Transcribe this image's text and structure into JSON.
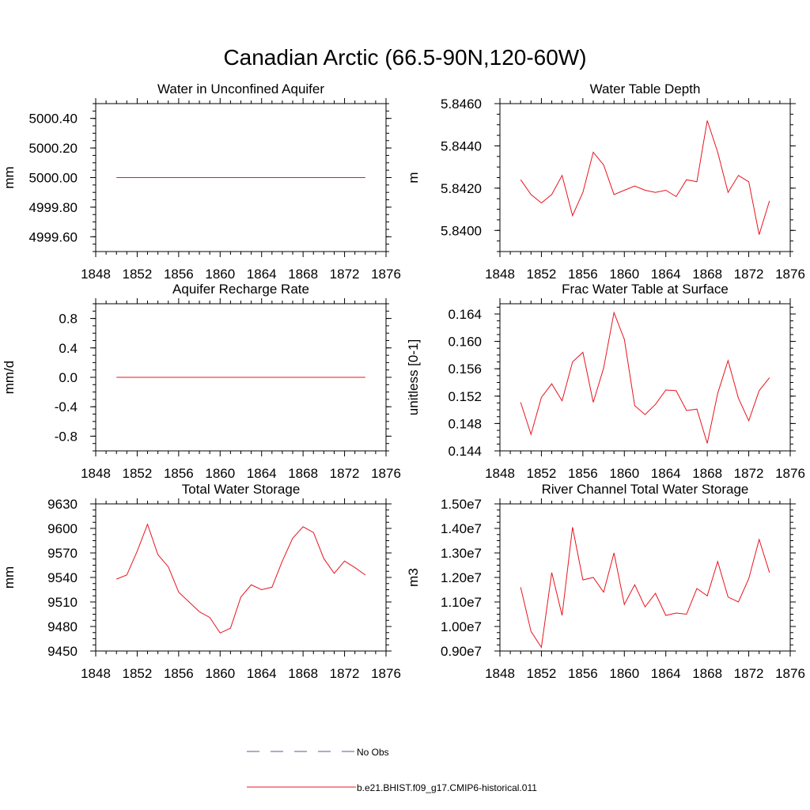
{
  "title": "Canadian Arctic (66.5-90N,120-60W)",
  "legend": {
    "placement": "bottom-center",
    "entries": [
      {
        "label": "No Obs",
        "color": "#5a5aa0",
        "style": "dashed"
      },
      {
        "label": "b.e21.BHIST.f09_g17.CMIP6-historical.011",
        "color": "#e8141e",
        "style": "solid"
      }
    ]
  },
  "chart_data": [
    {
      "type": "line",
      "title": "Water in Unconfined Aquifer",
      "ylabel": "mm",
      "xlim": [
        1848,
        1876
      ],
      "ylim": [
        4999.5,
        5000.5
      ],
      "xticks": [
        "1848",
        "1852",
        "1856",
        "1860",
        "1864",
        "1868",
        "1872",
        "1876"
      ],
      "yticks": [
        {
          "v": 4999.6,
          "label": "4999.60"
        },
        {
          "v": 4999.8,
          "label": "4999.80"
        },
        {
          "v": 5000.0,
          "label": "5000.00"
        },
        {
          "v": 5000.2,
          "label": "5000.20"
        },
        {
          "v": 5000.4,
          "label": "5000.40"
        }
      ],
      "x": [
        1850,
        1851,
        1852,
        1853,
        1854,
        1855,
        1856,
        1857,
        1858,
        1859,
        1860,
        1861,
        1862,
        1863,
        1864,
        1865,
        1866,
        1867,
        1868,
        1869,
        1870,
        1871,
        1872,
        1873,
        1874
      ],
      "series": [
        {
          "color": "#e8141e",
          "values": [
            5000.0,
            5000.0,
            5000.0,
            5000.0,
            5000.0,
            5000.0,
            5000.0,
            5000.0,
            5000.0,
            5000.0,
            5000.0,
            5000.0,
            5000.0,
            5000.0,
            5000.0,
            5000.0,
            5000.0,
            5000.0,
            5000.0,
            5000.0,
            5000.0,
            5000.0,
            5000.0,
            5000.0,
            5000.0
          ]
        }
      ]
    },
    {
      "type": "line",
      "title": "Water Table Depth",
      "ylabel": "m",
      "xlim": [
        1848,
        1876
      ],
      "ylim": [
        5.839,
        5.846
      ],
      "xticks": [
        "1848",
        "1852",
        "1856",
        "1860",
        "1864",
        "1868",
        "1872",
        "1876"
      ],
      "yticks": [
        {
          "v": 5.84,
          "label": "5.8400"
        },
        {
          "v": 5.842,
          "label": "5.8420"
        },
        {
          "v": 5.844,
          "label": "5.8440"
        },
        {
          "v": 5.846,
          "label": "5.8460"
        }
      ],
      "x": [
        1850,
        1851,
        1852,
        1853,
        1854,
        1855,
        1856,
        1857,
        1858,
        1859,
        1860,
        1861,
        1862,
        1863,
        1864,
        1865,
        1866,
        1867,
        1868,
        1869,
        1870,
        1871,
        1872,
        1873,
        1874
      ],
      "series": [
        {
          "color": "#e8141e",
          "values": [
            5.8424,
            5.8417,
            5.8413,
            5.8417,
            5.8426,
            5.8407,
            5.8418,
            5.8437,
            5.8431,
            5.8417,
            5.8419,
            5.8421,
            5.8419,
            5.8418,
            5.8419,
            5.8416,
            5.8424,
            5.8423,
            5.8452,
            5.8437,
            5.8418,
            5.8426,
            5.8423,
            5.8398,
            5.8414
          ]
        }
      ]
    },
    {
      "type": "line",
      "title": "Aquifer Recharge Rate",
      "ylabel": "mm/d",
      "xlim": [
        1848,
        1876
      ],
      "ylim": [
        -1.0,
        1.0
      ],
      "xticks": [
        "1848",
        "1852",
        "1856",
        "1860",
        "1864",
        "1868",
        "1872",
        "1876"
      ],
      "yticks": [
        {
          "v": -0.8,
          "label": "-0.8"
        },
        {
          "v": -0.4,
          "label": "-0.4"
        },
        {
          "v": 0.0,
          "label": "0.0"
        },
        {
          "v": 0.4,
          "label": "0.4"
        },
        {
          "v": 0.8,
          "label": "0.8"
        }
      ],
      "x": [
        1850,
        1851,
        1852,
        1853,
        1854,
        1855,
        1856,
        1857,
        1858,
        1859,
        1860,
        1861,
        1862,
        1863,
        1864,
        1865,
        1866,
        1867,
        1868,
        1869,
        1870,
        1871,
        1872,
        1873,
        1874
      ],
      "series": [
        {
          "color": "#e8141e",
          "values": [
            0,
            0,
            0,
            0,
            0,
            0,
            0,
            0,
            0,
            0,
            0,
            0,
            0,
            0,
            0,
            0,
            0,
            0,
            0,
            0,
            0,
            0,
            0,
            0,
            0
          ]
        }
      ]
    },
    {
      "type": "line",
      "title": "Frac Water Table at Surface",
      "ylabel": "unitless [0-1]",
      "xlim": [
        1848,
        1876
      ],
      "ylim": [
        0.144,
        0.1655
      ],
      "xticks": [
        "1848",
        "1852",
        "1856",
        "1860",
        "1864",
        "1868",
        "1872",
        "1876"
      ],
      "yticks": [
        {
          "v": 0.144,
          "label": "0.144"
        },
        {
          "v": 0.148,
          "label": "0.148"
        },
        {
          "v": 0.152,
          "label": "0.152"
        },
        {
          "v": 0.156,
          "label": "0.156"
        },
        {
          "v": 0.16,
          "label": "0.160"
        },
        {
          "v": 0.164,
          "label": "0.164"
        }
      ],
      "x": [
        1850,
        1851,
        1852,
        1853,
        1854,
        1855,
        1856,
        1857,
        1858,
        1859,
        1860,
        1861,
        1862,
        1863,
        1864,
        1865,
        1866,
        1867,
        1868,
        1869,
        1870,
        1871,
        1872,
        1873,
        1874
      ],
      "series": [
        {
          "color": "#e8141e",
          "values": [
            0.1511,
            0.1464,
            0.1518,
            0.1538,
            0.1513,
            0.157,
            0.1584,
            0.1511,
            0.1561,
            0.1642,
            0.1603,
            0.1506,
            0.1493,
            0.1508,
            0.1529,
            0.1528,
            0.1499,
            0.1501,
            0.1451,
            0.1524,
            0.1572,
            0.1517,
            0.1484,
            0.1528,
            0.1547
          ]
        }
      ]
    },
    {
      "type": "line",
      "title": "Total Water Storage",
      "ylabel": "mm",
      "xlim": [
        1848,
        1876
      ],
      "ylim": [
        9450,
        9630
      ],
      "xticks": [
        "1848",
        "1852",
        "1856",
        "1860",
        "1864",
        "1868",
        "1872",
        "1876"
      ],
      "yticks": [
        {
          "v": 9450,
          "label": "9450"
        },
        {
          "v": 9480,
          "label": "9480"
        },
        {
          "v": 9510,
          "label": "9510"
        },
        {
          "v": 9540,
          "label": "9540"
        },
        {
          "v": 9570,
          "label": "9570"
        },
        {
          "v": 9600,
          "label": "9600"
        },
        {
          "v": 9630,
          "label": "9630"
        }
      ],
      "x": [
        1850,
        1851,
        1852,
        1853,
        1854,
        1855,
        1856,
        1857,
        1858,
        1859,
        1860,
        1861,
        1862,
        1863,
        1864,
        1865,
        1866,
        1867,
        1868,
        1869,
        1870,
        1871,
        1872,
        1873,
        1874
      ],
      "series": [
        {
          "color": "#e8141e",
          "values": [
            9538,
            9543,
            9572,
            9605,
            9568,
            9553,
            9522,
            9510,
            9498,
            9491,
            9472,
            9478,
            9516,
            9531,
            9525,
            9528,
            9560,
            9588,
            9602,
            9595,
            9563,
            9545,
            9560,
            9552,
            9543
          ]
        }
      ]
    },
    {
      "type": "line",
      "title": "River Channel Total Water Storage",
      "ylabel": "m3",
      "xlim": [
        1848,
        1876
      ],
      "ylim": [
        9000000,
        15000000
      ],
      "xticks": [
        "1848",
        "1852",
        "1856",
        "1860",
        "1864",
        "1868",
        "1872",
        "1876"
      ],
      "yticks": [
        {
          "v": 9000000,
          "label": "0.90e7"
        },
        {
          "v": 10000000,
          "label": "1.00e7"
        },
        {
          "v": 11000000,
          "label": "1.10e7"
        },
        {
          "v": 12000000,
          "label": "1.20e7"
        },
        {
          "v": 13000000,
          "label": "1.30e7"
        },
        {
          "v": 14000000,
          "label": "1.40e7"
        },
        {
          "v": 15000000,
          "label": "1.50e7"
        }
      ],
      "x": [
        1850,
        1851,
        1852,
        1853,
        1854,
        1855,
        1856,
        1857,
        1858,
        1859,
        1860,
        1861,
        1862,
        1863,
        1864,
        1865,
        1866,
        1867,
        1868,
        1869,
        1870,
        1871,
        1872,
        1873,
        1874
      ],
      "series": [
        {
          "color": "#e8141e",
          "values": [
            11600000,
            9800000,
            9150000,
            12200000,
            10450000,
            14050000,
            11900000,
            12000000,
            11400000,
            13000000,
            10900000,
            11700000,
            10800000,
            11350000,
            10450000,
            10550000,
            10500000,
            11550000,
            11250000,
            12650000,
            11200000,
            11000000,
            11950000,
            13550000,
            12200000
          ]
        }
      ]
    }
  ]
}
